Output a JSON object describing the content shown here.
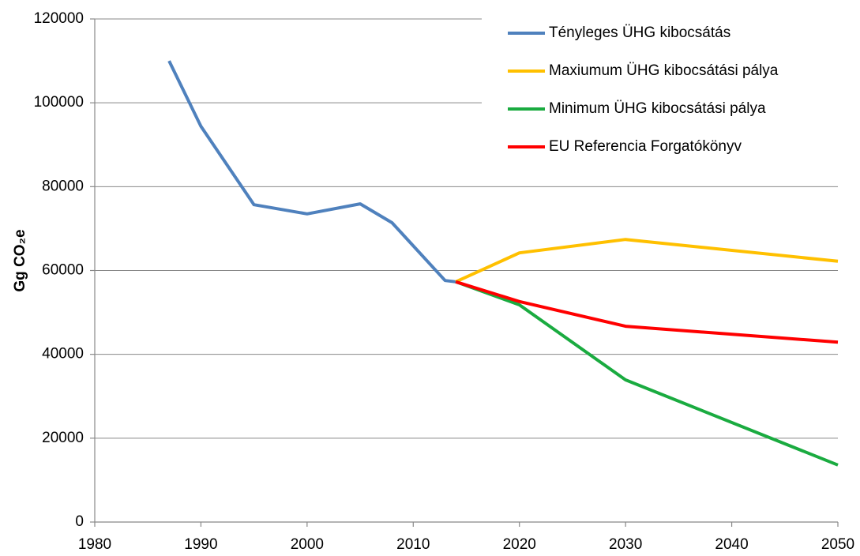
{
  "chart_data": {
    "type": "line",
    "y_label": "Gg CO₂e",
    "xlim": [
      1980,
      2050
    ],
    "xticks": [
      1980,
      1990,
      2000,
      2010,
      2020,
      2030,
      2040,
      2050
    ],
    "ylim": [
      0,
      120000
    ],
    "yticks": [
      0,
      20000,
      40000,
      60000,
      80000,
      100000,
      120000
    ],
    "grid": true,
    "legend": "upper right",
    "series": [
      {
        "name": "Tényleges ÜHG kibocsátás",
        "color": "#4f81bd",
        "x": [
          1987,
          1990,
          1995,
          2000,
          2005,
          2008,
          2013,
          2014
        ],
        "values": [
          110000,
          94400,
          75700,
          73500,
          75900,
          71400,
          57600,
          57300
        ]
      },
      {
        "name": "Maxiumum ÜHG kibocsátási pálya",
        "color": "#ffc000",
        "x": [
          2014,
          2020,
          2030,
          2050
        ],
        "values": [
          57300,
          64200,
          67400,
          62200
        ]
      },
      {
        "name": "Minimum ÜHG kibocsátási pálya",
        "color": "#1aab40",
        "x": [
          2014,
          2020,
          2030,
          2050
        ],
        "values": [
          57300,
          51800,
          33900,
          13600
        ]
      },
      {
        "name": "EU Referencia Forgatókönyv",
        "color": "#ff0000",
        "x": [
          2014,
          2020,
          2030,
          2050
        ],
        "values": [
          57300,
          52600,
          46700,
          42900
        ]
      }
    ]
  }
}
